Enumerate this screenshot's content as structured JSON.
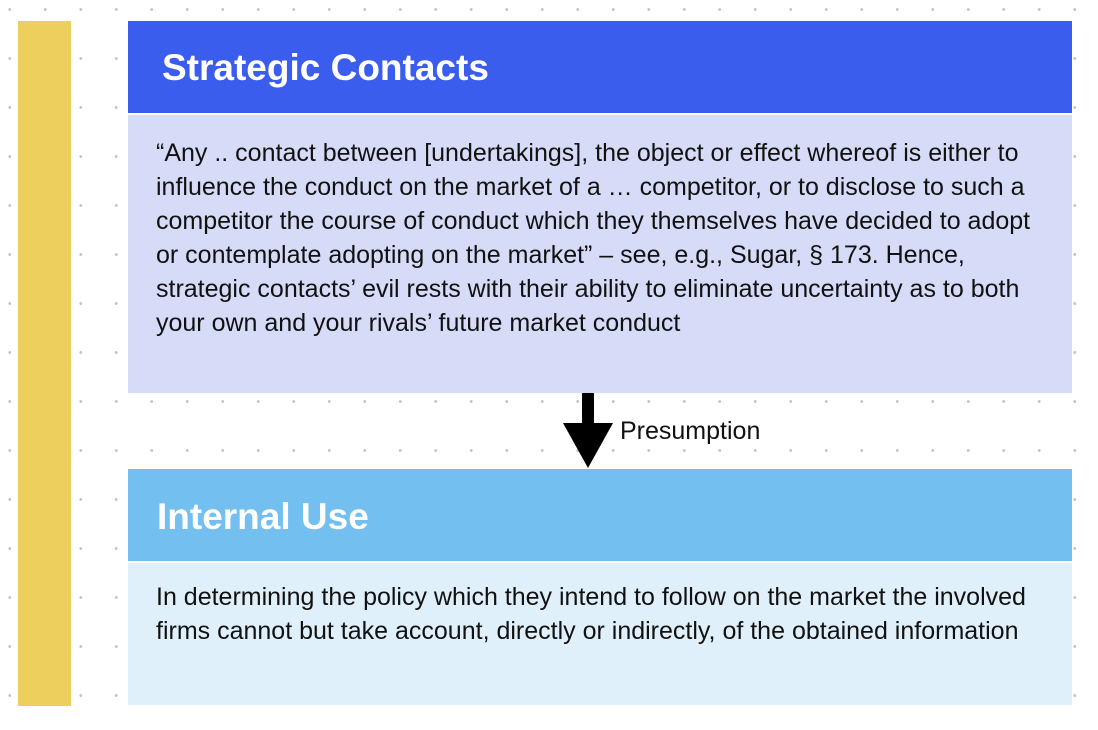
{
  "colors": {
    "accent_bar": "#edcf5e",
    "strategic_header": "#3a5ded",
    "strategic_body": "#d6dcf7",
    "internal_header": "#73bfef",
    "internal_body": "#e0f0fa"
  },
  "strategic": {
    "title": "Strategic Contacts",
    "text": "“Any .. contact between [undertakings], the object or effect whereof is either to influence the conduct on the market of a … competitor, or to disclose to such a competitor the course of conduct which they themselves have decided to adopt or contemplate adopting on the market” – see, e.g., Sugar, § 173. Hence, strategic contacts’ evil rests with their ability to eliminate uncertainty as to both your own and your rivals’ future market conduct"
  },
  "connector": {
    "icon": "arrow-down-icon",
    "label": "Presumption"
  },
  "internal": {
    "title": "Internal Use",
    "text": "In determining the policy which they intend to follow on the market the involved firms cannot but take account, directly or indirectly, of the obtained information"
  }
}
